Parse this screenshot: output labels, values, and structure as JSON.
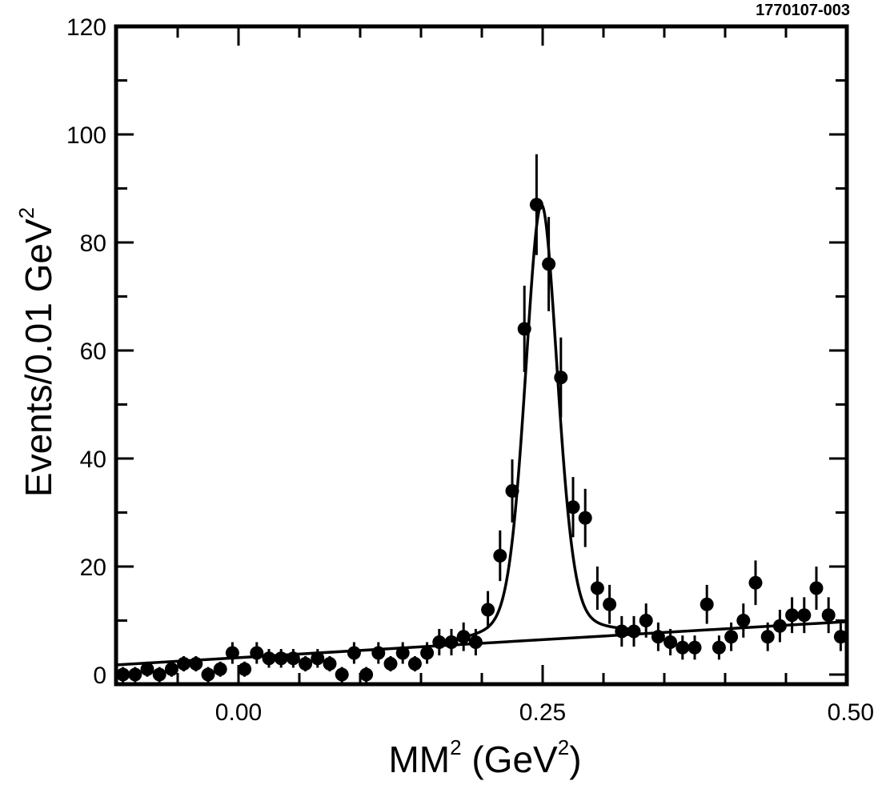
{
  "figure_id": "1770107-003",
  "chart_data": {
    "type": "scatter",
    "title": "",
    "xlabel": {
      "main": "MM",
      "sup1": "2",
      "mid": " (GeV",
      "sup2": "2",
      "end": ")"
    },
    "ylabel": {
      "main": "Events/0.01 GeV",
      "sup": "2"
    },
    "xlim": [
      -0.1,
      0.5
    ],
    "ylim": [
      0,
      120
    ],
    "x_ticks": [
      {
        "value": 0.0,
        "label": "0.00"
      },
      {
        "value": 0.25,
        "label": "0.25"
      },
      {
        "value": 0.5,
        "label": "0.50"
      }
    ],
    "y_ticks": [
      {
        "value": 0,
        "label": "0"
      },
      {
        "value": 20,
        "label": "20"
      },
      {
        "value": 40,
        "label": "40"
      },
      {
        "value": 60,
        "label": "60"
      },
      {
        "value": 80,
        "label": "80"
      },
      {
        "value": 100,
        "label": "100"
      },
      {
        "value": 120,
        "label": "120"
      }
    ],
    "x_minor_ticks": [
      -0.05,
      0.05,
      0.1,
      0.15,
      0.2,
      0.3,
      0.35,
      0.4,
      0.45
    ],
    "y_minor_ticks": [
      10,
      30,
      50,
      70,
      90,
      110
    ],
    "series": [
      {
        "kind": "data-points-with-errors",
        "points": [
          {
            "x": -0.095,
            "y": 0
          },
          {
            "x": -0.085,
            "y": 0
          },
          {
            "x": -0.075,
            "y": 1
          },
          {
            "x": -0.065,
            "y": 0
          },
          {
            "x": -0.055,
            "y": 1
          },
          {
            "x": -0.045,
            "y": 2
          },
          {
            "x": -0.035,
            "y": 2
          },
          {
            "x": -0.025,
            "y": 0
          },
          {
            "x": -0.015,
            "y": 1
          },
          {
            "x": -0.005,
            "y": 4
          },
          {
            "x": 0.005,
            "y": 1
          },
          {
            "x": 0.015,
            "y": 4
          },
          {
            "x": 0.025,
            "y": 3
          },
          {
            "x": 0.035,
            "y": 3
          },
          {
            "x": 0.045,
            "y": 3
          },
          {
            "x": 0.055,
            "y": 2
          },
          {
            "x": 0.065,
            "y": 3
          },
          {
            "x": 0.075,
            "y": 2
          },
          {
            "x": 0.085,
            "y": 0
          },
          {
            "x": 0.095,
            "y": 4
          },
          {
            "x": 0.105,
            "y": 0
          },
          {
            "x": 0.115,
            "y": 4
          },
          {
            "x": 0.125,
            "y": 2
          },
          {
            "x": 0.135,
            "y": 4
          },
          {
            "x": 0.145,
            "y": 2
          },
          {
            "x": 0.155,
            "y": 4
          },
          {
            "x": 0.165,
            "y": 6
          },
          {
            "x": 0.175,
            "y": 6
          },
          {
            "x": 0.185,
            "y": 7
          },
          {
            "x": 0.195,
            "y": 6
          },
          {
            "x": 0.205,
            "y": 12
          },
          {
            "x": 0.215,
            "y": 22
          },
          {
            "x": 0.225,
            "y": 34
          },
          {
            "x": 0.235,
            "y": 64
          },
          {
            "x": 0.245,
            "y": 87
          },
          {
            "x": 0.255,
            "y": 76
          },
          {
            "x": 0.265,
            "y": 55
          },
          {
            "x": 0.275,
            "y": 31
          },
          {
            "x": 0.285,
            "y": 29
          },
          {
            "x": 0.295,
            "y": 16
          },
          {
            "x": 0.305,
            "y": 13
          },
          {
            "x": 0.315,
            "y": 8
          },
          {
            "x": 0.325,
            "y": 8
          },
          {
            "x": 0.335,
            "y": 10
          },
          {
            "x": 0.345,
            "y": 7
          },
          {
            "x": 0.355,
            "y": 6
          },
          {
            "x": 0.365,
            "y": 5
          },
          {
            "x": 0.375,
            "y": 5
          },
          {
            "x": 0.385,
            "y": 13
          },
          {
            "x": 0.395,
            "y": 5
          },
          {
            "x": 0.405,
            "y": 7
          },
          {
            "x": 0.415,
            "y": 10
          },
          {
            "x": 0.425,
            "y": 17
          },
          {
            "x": 0.435,
            "y": 7
          },
          {
            "x": 0.445,
            "y": 9
          },
          {
            "x": 0.455,
            "y": 11
          },
          {
            "x": 0.465,
            "y": 11
          },
          {
            "x": 0.475,
            "y": 16
          },
          {
            "x": 0.485,
            "y": 11
          },
          {
            "x": 0.495,
            "y": 7
          }
        ]
      },
      {
        "kind": "background-line",
        "x": [
          -0.1,
          0.5
        ],
        "y": [
          1.8,
          9.8
        ]
      },
      {
        "kind": "fit-curve",
        "peak_x": 0.249,
        "peak_height": 80.5,
        "sigma": 0.0135,
        "background": [
          1.8,
          9.8
        ]
      }
    ],
    "grid": false,
    "legend": "none"
  },
  "style": {
    "ink": "#000000",
    "background": "#ffffff"
  }
}
